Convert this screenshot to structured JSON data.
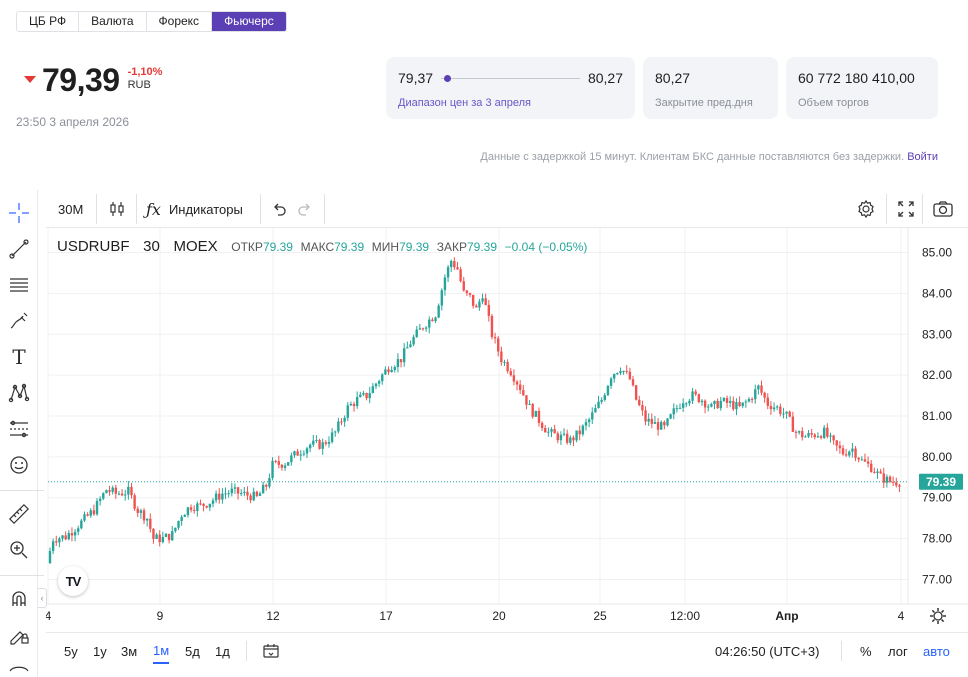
{
  "tabs": [
    "ЦБ РФ",
    "Валюта",
    "Форекс",
    "Фьючерс"
  ],
  "active_tab": "Фьючерс",
  "quote": {
    "price": "79,39",
    "change": "-1,10%",
    "currency": "RUB",
    "timestamp": "23:50 3 апреля 2026"
  },
  "cards": {
    "range_low": "79,37",
    "range_high": "80,27",
    "range_label": "Диапазон цен за 3 апреля",
    "range_position": 0.02,
    "prev_close_value": "80,27",
    "prev_close_label": "Закрытие пред.дня",
    "volume_value": "60 772 180 410,00",
    "volume_label": "Объем торгов"
  },
  "delay_note": "Данные с задержкой 15 минут. Клиентам БКС данные поставляются без задержки.",
  "login_link": "Войти",
  "toolbar": {
    "interval": "30M",
    "indicators": "Индикаторы"
  },
  "legend": {
    "symbol": "USDRUBF",
    "interval": "30",
    "exchange": "MOEX",
    "open_label": "ОТКР",
    "open": "79.39",
    "high_label": "МАКС",
    "high": "79.39",
    "low_label": "МИН",
    "low": "79.39",
    "close_label": "ЗАКР",
    "close": "79.39",
    "change": "−0.04 (−0.05%)"
  },
  "bottom": {
    "ranges": [
      "5y",
      "1y",
      "3м",
      "1м",
      "5д",
      "1д"
    ],
    "active_range": "1м",
    "clock": "04:26:50 (UTC+3)",
    "percent": "%",
    "log": "лог",
    "auto": "авто"
  },
  "colors": {
    "accent": "#5b3fb5",
    "up": "#26a69a",
    "down": "#ef5350",
    "negative": "#e53935",
    "link": "#2962ff"
  },
  "chart_data": {
    "type": "candlestick",
    "symbol": "USDRUBF",
    "ylim": [
      76.4,
      85.6
    ],
    "y_ticks": [
      "85.00",
      "84.00",
      "83.00",
      "82.00",
      "81.00",
      "80.00",
      "79.00",
      "78.00",
      "77.00"
    ],
    "y_tick_values": [
      85,
      84,
      83,
      82,
      81,
      80,
      79,
      78,
      77
    ],
    "x_ticks": [
      "4",
      "9",
      "12",
      "17",
      "20",
      "25",
      "12:00",
      "Апр",
      "4"
    ],
    "last_price_label": "79.39",
    "last_price": 79.39,
    "grid": true,
    "path_points": [
      [
        0,
        77.4
      ],
      [
        4,
        78.0
      ],
      [
        12,
        78.05
      ],
      [
        22,
        78.4
      ],
      [
        30,
        78.7
      ],
      [
        38,
        79.2
      ],
      [
        44,
        79.1
      ],
      [
        52,
        79.15
      ],
      [
        58,
        78.7
      ],
      [
        64,
        78.5
      ],
      [
        68,
        78.0
      ],
      [
        74,
        78.0
      ],
      [
        80,
        78.1
      ],
      [
        86,
        78.6
      ],
      [
        92,
        78.8
      ],
      [
        98,
        78.8
      ],
      [
        104,
        78.9
      ],
      [
        112,
        79.1
      ],
      [
        118,
        79.15
      ],
      [
        124,
        79.1
      ],
      [
        130,
        79.05
      ],
      [
        134,
        79.0
      ],
      [
        140,
        79.3
      ],
      [
        144,
        79.8
      ],
      [
        152,
        79.85
      ],
      [
        160,
        80.1
      ],
      [
        168,
        80.3
      ],
      [
        176,
        80.3
      ],
      [
        184,
        80.6
      ],
      [
        192,
        81.2
      ],
      [
        198,
        81.4
      ],
      [
        204,
        81.5
      ],
      [
        210,
        81.8
      ],
      [
        218,
        82.2
      ],
      [
        226,
        82.4
      ],
      [
        232,
        82.8
      ],
      [
        240,
        83.2
      ],
      [
        248,
        83.5
      ],
      [
        254,
        84.4
      ],
      [
        258,
        84.8
      ],
      [
        262,
        84.6
      ],
      [
        266,
        84.0
      ],
      [
        270,
        83.9
      ],
      [
        274,
        83.6
      ],
      [
        278,
        84.0
      ],
      [
        284,
        83.0
      ],
      [
        290,
        82.4
      ],
      [
        296,
        82.1
      ],
      [
        302,
        81.7
      ],
      [
        308,
        81.2
      ],
      [
        314,
        80.9
      ],
      [
        320,
        80.6
      ],
      [
        326,
        80.5
      ],
      [
        334,
        80.4
      ],
      [
        340,
        80.6
      ],
      [
        346,
        80.9
      ],
      [
        354,
        81.4
      ],
      [
        360,
        82.0
      ],
      [
        366,
        82.2
      ],
      [
        372,
        81.9
      ],
      [
        376,
        81.4
      ],
      [
        382,
        80.9
      ],
      [
        388,
        80.8
      ],
      [
        394,
        80.7
      ],
      [
        400,
        81.1
      ],
      [
        406,
        81.4
      ],
      [
        412,
        81.5
      ],
      [
        418,
        81.4
      ],
      [
        424,
        81.2
      ],
      [
        430,
        81.35
      ],
      [
        436,
        81.3
      ],
      [
        442,
        81.2
      ],
      [
        448,
        81.4
      ],
      [
        454,
        81.7
      ],
      [
        460,
        81.3
      ],
      [
        466,
        81.2
      ],
      [
        472,
        81.0
      ],
      [
        478,
        80.6
      ],
      [
        484,
        80.5
      ],
      [
        490,
        80.55
      ],
      [
        496,
        80.6
      ],
      [
        502,
        80.3
      ],
      [
        508,
        80.1
      ],
      [
        514,
        80.2
      ],
      [
        520,
        79.9
      ],
      [
        526,
        79.75
      ],
      [
        532,
        79.5
      ],
      [
        538,
        79.4
      ],
      [
        543,
        79.39
      ]
    ]
  }
}
